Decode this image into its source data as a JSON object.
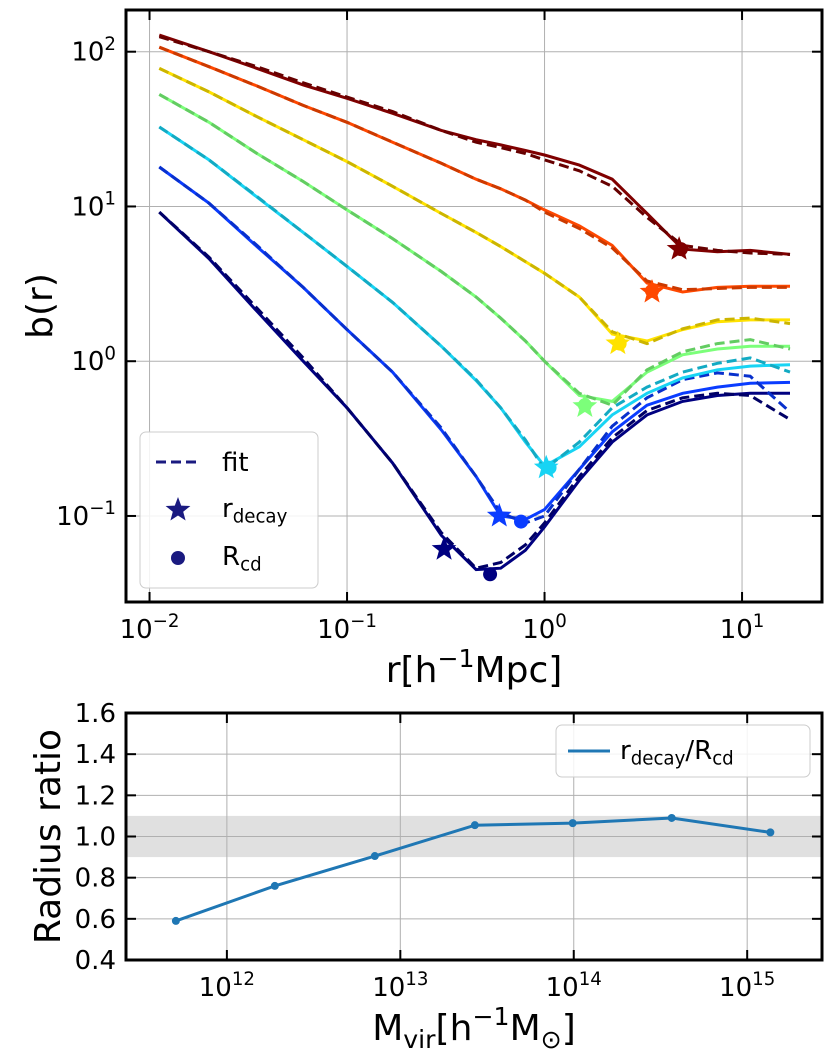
{
  "chart_data": [
    {
      "type": "line",
      "xscale": "log",
      "yscale": "log",
      "grid": true,
      "xlabel": "r[h^{−1}Mpc]",
      "ylabel": "b(r)",
      "xlim": [
        0.0076,
        25.4
      ],
      "ylim": [
        0.0278,
        186
      ],
      "xticks": [
        {
          "value": 0.01,
          "label": "10^{−2}"
        },
        {
          "value": 0.1,
          "label": "10^{−1}"
        },
        {
          "value": 1,
          "label": "10^{0}"
        },
        {
          "value": 10,
          "label": "10^{1}"
        }
      ],
      "yticks": [
        {
          "value": 0.1,
          "label": "10^{−1}"
        },
        {
          "value": 1,
          "label": "10^{0}"
        },
        {
          "value": 10,
          "label": "10^{1}"
        },
        {
          "value": 100,
          "label": "10^{2}"
        }
      ],
      "legend": "lower left",
      "legend_color": "#1a1a80",
      "fit_label": "fit",
      "star_label": "r_{decay}",
      "dot_label": "R_{cd}",
      "x": [
        0.0112,
        0.02,
        0.035,
        0.06,
        0.1,
        0.17,
        0.3,
        0.45,
        0.6,
        0.8,
        1.0,
        1.5,
        2.2,
        3.3,
        5,
        7.5,
        11,
        17.5
      ],
      "series": [
        {
          "color": "#000080",
          "values": [
            9.2,
            4.6,
            2.1,
            1.0,
            0.5,
            0.22,
            0.075,
            0.045,
            0.046,
            0.06,
            0.085,
            0.17,
            0.3,
            0.45,
            0.55,
            0.6,
            0.62,
            0.62
          ],
          "fit": [
            9.2,
            4.7,
            2.2,
            1.05,
            0.5,
            0.22,
            0.078,
            0.046,
            0.05,
            0.065,
            0.09,
            0.18,
            0.32,
            0.48,
            0.58,
            0.62,
            0.6,
            0.42
          ],
          "star_x": 0.31,
          "star_y": 0.061,
          "dot_x": 0.53,
          "dot_y": 0.042
        },
        {
          "color": "#0a3cff",
          "values": [
            18,
            10.5,
            5.5,
            3.0,
            1.6,
            0.85,
            0.36,
            0.18,
            0.1,
            0.095,
            0.11,
            0.2,
            0.35,
            0.52,
            0.62,
            0.68,
            0.72,
            0.73
          ],
          "fit": [
            18,
            10.5,
            5.6,
            3.0,
            1.6,
            0.85,
            0.37,
            0.18,
            0.105,
            0.09,
            0.1,
            0.2,
            0.38,
            0.58,
            0.76,
            0.84,
            0.8,
            0.47
          ],
          "star_x": 0.59,
          "star_y": 0.1,
          "dot_x": 0.76,
          "dot_y": 0.092
        },
        {
          "color": "#18d4f4",
          "values": [
            32.6,
            20,
            11.5,
            6.8,
            4.1,
            2.4,
            1.25,
            0.75,
            0.5,
            0.3,
            0.21,
            0.28,
            0.45,
            0.62,
            0.78,
            0.88,
            0.93,
            0.95
          ],
          "fit": [
            32.6,
            20,
            11.6,
            6.8,
            4.1,
            2.4,
            1.25,
            0.76,
            0.5,
            0.31,
            0.2,
            0.3,
            0.5,
            0.68,
            0.85,
            0.97,
            1.05,
            0.85
          ],
          "star_x": 1.02,
          "star_y": 0.205,
          "dot_x": 1.06,
          "dot_y": 0.205
        },
        {
          "color": "#7cff7a",
          "values": [
            53,
            35,
            22,
            14.5,
            9.5,
            6.2,
            3.8,
            2.6,
            1.9,
            1.35,
            1.0,
            0.6,
            0.55,
            0.85,
            1.1,
            1.2,
            1.25,
            1.25
          ],
          "fit": [
            53,
            35,
            22,
            14.5,
            9.5,
            6.2,
            3.8,
            2.6,
            1.9,
            1.35,
            1.0,
            0.62,
            0.52,
            0.88,
            1.15,
            1.3,
            1.38,
            1.2
          ],
          "star_x": 1.6,
          "star_y": 0.51,
          "dot_x": 1.6,
          "dot_y": 0.52
        },
        {
          "color": "#ffe200",
          "values": [
            78,
            55,
            38,
            27,
            19.5,
            13.5,
            9,
            6.8,
            5.5,
            4.4,
            3.7,
            2.6,
            1.5,
            1.35,
            1.6,
            1.8,
            1.85,
            1.85
          ],
          "fit": [
            78,
            55,
            38,
            27,
            19.5,
            13.5,
            9,
            6.8,
            5.5,
            4.4,
            3.7,
            2.6,
            1.55,
            1.3,
            1.62,
            1.85,
            1.9,
            1.75
          ],
          "star_x": 2.35,
          "star_y": 1.3,
          "dot_x": 2.4,
          "dot_y": 1.3
        },
        {
          "color": "#ff4800",
          "values": [
            107,
            80,
            60,
            45,
            35,
            26,
            19,
            15,
            13,
            11,
            9.5,
            7.5,
            5.6,
            3.2,
            2.8,
            3.0,
            3.05,
            3.05
          ],
          "fit": [
            107,
            80,
            60,
            45,
            35,
            26,
            19,
            15,
            13,
            11,
            9.2,
            7.2,
            5.4,
            3.3,
            2.9,
            2.95,
            3.0,
            3.0
          ],
          "star_x": 3.5,
          "star_y": 2.8,
          "dot_x": 3.5,
          "dot_y": 2.85
        },
        {
          "color": "#800000",
          "values": [
            128,
            100,
            78,
            61,
            50,
            40,
            31,
            27,
            25,
            23,
            21.5,
            18.5,
            15,
            9,
            5.3,
            5.1,
            5.2,
            4.9
          ],
          "fit": [
            125,
            100,
            80,
            63,
            51,
            41,
            31,
            26,
            24,
            22,
            20,
            17,
            13.5,
            8.5,
            5.6,
            5.2,
            5.0,
            4.9
          ],
          "star_x": 4.8,
          "star_y": 5.3,
          "dot_x": 4.9,
          "dot_y": 5.3
        }
      ]
    },
    {
      "type": "line",
      "xscale": "log",
      "yscale": "linear",
      "grid": true,
      "xlabel": "M_{vir}[h^{−1}M_{⊙}]",
      "ylabel": "Radius ratio",
      "xlim": [
        262000000000.0,
        2700000000000000.0
      ],
      "ylim": [
        0.4,
        1.6
      ],
      "xticks": [
        {
          "value": 1000000000000.0,
          "label": "10^{12}"
        },
        {
          "value": 10000000000000.0,
          "label": "10^{13}"
        },
        {
          "value": 100000000000000.0,
          "label": "10^{14}"
        },
        {
          "value": 1000000000000000.0,
          "label": "10^{15}"
        }
      ],
      "yticks": [
        0.4,
        0.6,
        0.8,
        {
          "value": 1,
          "label": "1.0"
        },
        1.2,
        1.4,
        1.6
      ],
      "band": [
        0.9,
        1.1
      ],
      "band_color": "#e0e0e0",
      "legend": "upper right",
      "x": [
        508000000000.0,
        1890000000000.0,
        7130000000000.0,
        26900000000000.0,
        98600000000000.0,
        367000000000000.0,
        1360000000000000.0
      ],
      "series": [
        {
          "name": "r_{decay}/R_{cd}",
          "color": "#1f77b4",
          "values": [
            0.59,
            0.76,
            0.905,
            1.055,
            1.065,
            1.09,
            1.02
          ]
        }
      ]
    }
  ]
}
